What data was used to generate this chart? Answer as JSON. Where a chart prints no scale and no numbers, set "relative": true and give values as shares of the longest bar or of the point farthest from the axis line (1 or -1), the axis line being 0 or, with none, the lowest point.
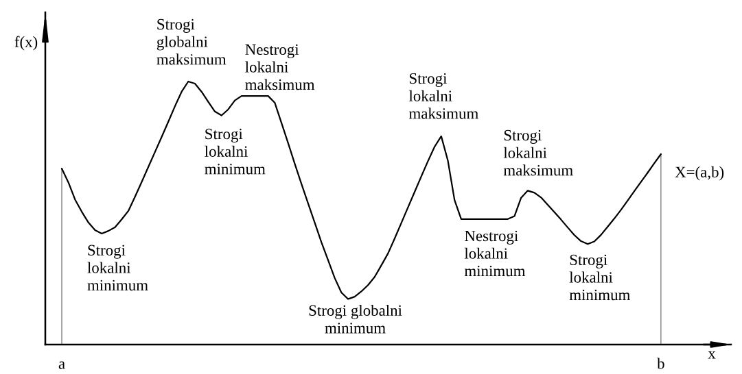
{
  "chart_data": {
    "type": "line",
    "relative": true,
    "xlabel": "x",
    "ylabel": "f(x)",
    "tick_labels": "x",
    "grid": false,
    "marker": "none",
    "line_style": "solid",
    "categories": [
      "a",
      null,
      null,
      null,
      null,
      null,
      null,
      null,
      null,
      null,
      null,
      null,
      null,
      null,
      null,
      null,
      null,
      null,
      null,
      null,
      null,
      null,
      null,
      null,
      null,
      null,
      null,
      null,
      null,
      null,
      null,
      null,
      null,
      null,
      null,
      null,
      null,
      null,
      null,
      null,
      null,
      null,
      null,
      null,
      null,
      null,
      null,
      null,
      null,
      null,
      null,
      null,
      null,
      null,
      null,
      null,
      null,
      null,
      null,
      null,
      null,
      null,
      null,
      null,
      null,
      null,
      null,
      null,
      null,
      null,
      null,
      null,
      null,
      null,
      null,
      null,
      null,
      null,
      null,
      null,
      null,
      null,
      null,
      null,
      null,
      null,
      null,
      null,
      null,
      null,
      "b"
    ],
    "series": [
      {
        "color": "#000000",
        "values": [
          0.669,
          0.616,
          0.551,
          0.505,
          0.464,
          0.435,
          0.422,
          0.432,
          0.446,
          0.476,
          0.508,
          0.562,
          0.618,
          0.675,
          0.732,
          0.789,
          0.847,
          0.906,
          0.961,
          1.0,
          0.992,
          0.961,
          0.923,
          0.886,
          0.871,
          0.894,
          0.928,
          0.945,
          0.945,
          0.945,
          0.945,
          0.945,
          0.919,
          0.843,
          0.766,
          0.687,
          0.611,
          0.537,
          0.463,
          0.389,
          0.321,
          0.253,
          0.198,
          0.173,
          0.182,
          0.202,
          0.226,
          0.257,
          0.301,
          0.346,
          0.403,
          0.462,
          0.521,
          0.58,
          0.639,
          0.697,
          0.752,
          0.792,
          0.699,
          0.549,
          0.477,
          0.477,
          0.477,
          0.477,
          0.477,
          0.477,
          0.477,
          0.477,
          0.488,
          0.558,
          0.585,
          0.577,
          0.559,
          0.531,
          0.503,
          0.475,
          0.445,
          0.416,
          0.393,
          0.382,
          0.392,
          0.417,
          0.448,
          0.479,
          0.512,
          0.547,
          0.583,
          0.618,
          0.653,
          0.689,
          0.724
        ]
      }
    ],
    "ref_lines": [
      {
        "axis": "x",
        "value": "a",
        "color": "#808080"
      },
      {
        "axis": "x",
        "value": "b",
        "color": "#808080"
      }
    ],
    "annotations": [
      "Strogi\nlokalni\nminimum",
      "Strogi\nglobalni\nmaksimum",
      "Nestrogi\nlokalni\nmaksimum",
      "Strogi\nlokalni\nminimum",
      "Strogi globalni\nminimum",
      "Strogi\nlokalni\nmaksimum",
      "Nestrogi\nlokalni\nminimum",
      "Strogi\nlokalni\nmaksimum",
      "Strogi\nlokalni\nminimum",
      "X=(a,b)"
    ]
  }
}
